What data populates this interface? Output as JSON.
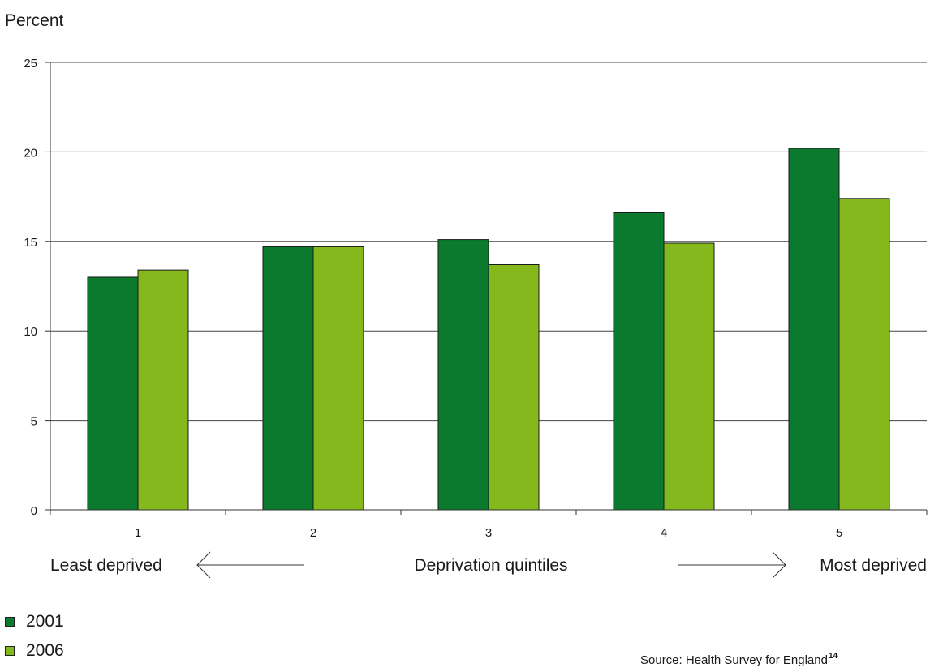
{
  "chart_data": {
    "type": "bar",
    "ylabel": "Percent",
    "xlabel": "Deprivation quintiles",
    "ylim": [
      0,
      25
    ],
    "yticks": [
      0,
      5,
      10,
      15,
      20,
      25
    ],
    "grid": true,
    "categories": [
      "1",
      "2",
      "3",
      "4",
      "5"
    ],
    "series": [
      {
        "name": "2001",
        "color": "#0b7a2e",
        "values": [
          13.0,
          14.7,
          15.1,
          16.6,
          20.2
        ]
      },
      {
        "name": "2006",
        "color": "#85b81c",
        "values": [
          13.4,
          14.7,
          13.7,
          14.9,
          17.4
        ]
      }
    ],
    "axis_annotations": {
      "left": "Least deprived",
      "center": "Deprivation quintiles",
      "right": "Most deprived"
    },
    "legend_position": "bottom-left",
    "source": "Source: Health Survey for England",
    "source_note": "14"
  }
}
